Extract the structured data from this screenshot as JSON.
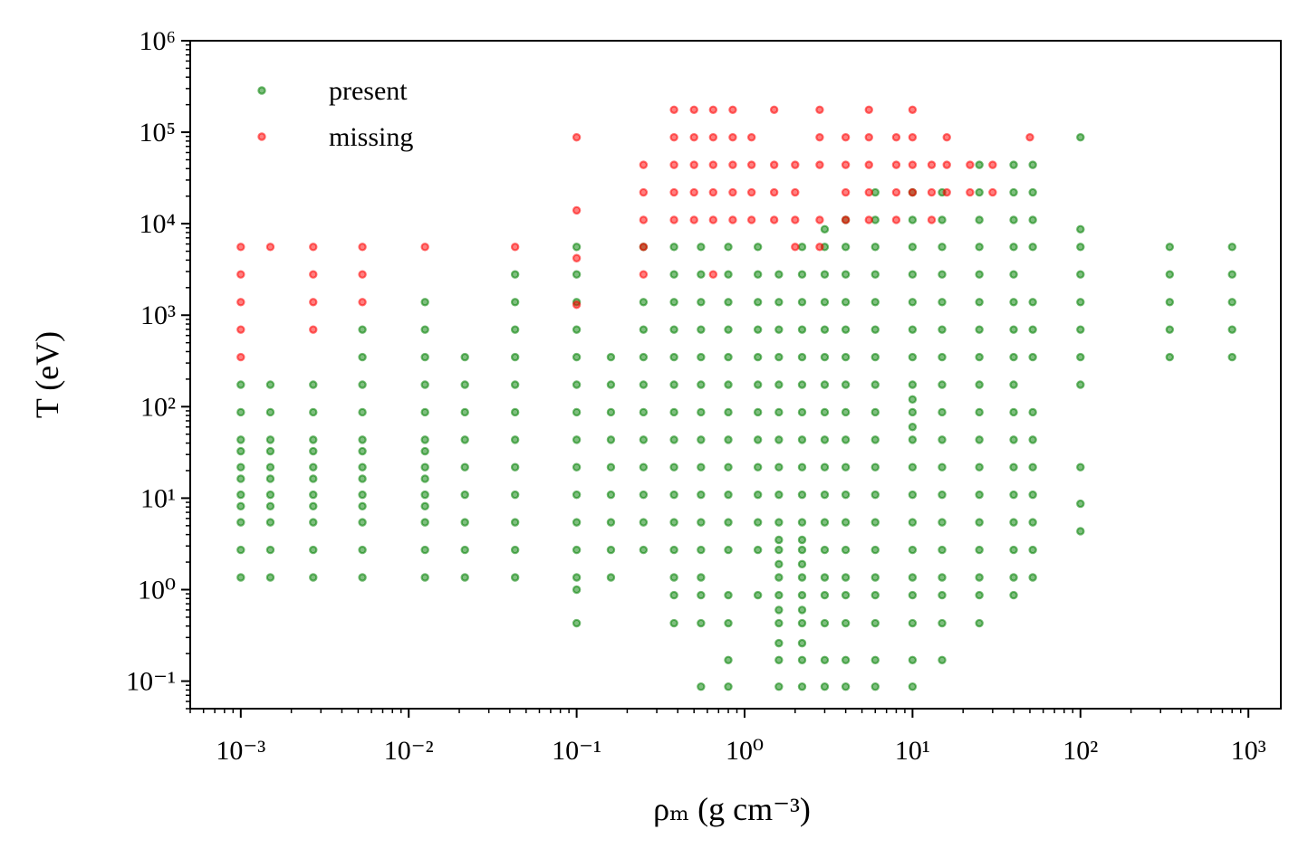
{
  "chart_data": {
    "type": "scatter",
    "xlabel": "ρₘ (g cm⁻³)",
    "ylabel": "T (eV)",
    "xscale": "log",
    "yscale": "log",
    "xlim": [
      0.0005,
      1560
    ],
    "ylim": [
      0.05,
      1000000
    ],
    "xticks": [
      {
        "value": 0.001,
        "label": "10⁻³"
      },
      {
        "value": 0.01,
        "label": "10⁻²"
      },
      {
        "value": 0.1,
        "label": "10⁻¹"
      },
      {
        "value": 1,
        "label": "10⁰"
      },
      {
        "value": 10,
        "label": "10¹"
      },
      {
        "value": 100,
        "label": "10²"
      },
      {
        "value": 1000,
        "label": "10³"
      }
    ],
    "yticks": [
      {
        "value": 0.1,
        "label": "10⁻¹"
      },
      {
        "value": 1,
        "label": "10⁰"
      },
      {
        "value": 10,
        "label": "10¹"
      },
      {
        "value": 100,
        "label": "10²"
      },
      {
        "value": 1000,
        "label": "10³"
      },
      {
        "value": 10000,
        "label": "10⁴"
      },
      {
        "value": 100000,
        "label": "10⁵"
      },
      {
        "value": 1000000,
        "label": "10⁶"
      }
    ],
    "legend": "upper left",
    "grid": false,
    "series": [
      {
        "name": "present",
        "color": "#008000",
        "x": [
          0.001,
          0.001,
          0.001,
          0.001,
          0.001,
          0.001,
          0.001,
          0.001,
          0.001,
          0.001,
          0.001,
          0.0015,
          0.0015,
          0.0015,
          0.0015,
          0.0015,
          0.0015,
          0.0015,
          0.0015,
          0.0015,
          0.0015,
          0.0015,
          0.0027,
          0.0027,
          0.0027,
          0.0027,
          0.0027,
          0.0027,
          0.0027,
          0.0027,
          0.0027,
          0.0027,
          0.0027,
          0.0053,
          0.0053,
          0.0053,
          0.0053,
          0.0053,
          0.0053,
          0.0053,
          0.0053,
          0.0053,
          0.0053,
          0.0053,
          0.0053,
          0.0053,
          0.0125,
          0.0125,
          0.0125,
          0.0125,
          0.0125,
          0.0125,
          0.0125,
          0.0125,
          0.0125,
          0.0125,
          0.0125,
          0.0125,
          0.0125,
          0.0125,
          0.0216,
          0.0216,
          0.0216,
          0.0216,
          0.0216,
          0.0216,
          0.0216,
          0.0216,
          0.0216,
          0.043,
          0.043,
          0.043,
          0.043,
          0.043,
          0.043,
          0.043,
          0.043,
          0.043,
          0.043,
          0.043,
          0.043,
          0.1,
          0.1,
          0.1,
          0.1,
          0.1,
          0.1,
          0.1,
          0.1,
          0.1,
          0.1,
          0.1,
          0.1,
          0.1,
          0.1,
          0.1,
          0.16,
          0.16,
          0.16,
          0.16,
          0.16,
          0.16,
          0.16,
          0.16,
          0.16,
          0.25,
          0.25,
          0.25,
          0.25,
          0.25,
          0.25,
          0.25,
          0.25,
          0.25,
          0.25,
          0.25,
          0.38,
          0.38,
          0.38,
          0.38,
          0.38,
          0.38,
          0.38,
          0.38,
          0.38,
          0.38,
          0.38,
          0.38,
          0.38,
          0.38,
          0.38,
          0.55,
          0.55,
          0.55,
          0.55,
          0.55,
          0.55,
          0.55,
          0.55,
          0.55,
          0.55,
          0.55,
          0.55,
          0.55,
          0.55,
          0.55,
          0.55,
          0.8,
          0.8,
          0.8,
          0.8,
          0.8,
          0.8,
          0.8,
          0.8,
          0.8,
          0.8,
          0.8,
          0.8,
          0.8,
          0.8,
          0.8,
          0.8,
          1.2,
          1.2,
          1.2,
          1.2,
          1.2,
          1.2,
          1.2,
          1.2,
          1.2,
          1.2,
          1.2,
          1.2,
          1.2,
          1.6,
          1.6,
          1.6,
          1.6,
          1.6,
          1.6,
          1.6,
          1.6,
          1.6,
          1.6,
          1.6,
          1.6,
          1.6,
          1.6,
          1.6,
          1.6,
          1.6,
          1.6,
          1.6,
          1.6,
          2.2,
          2.2,
          2.2,
          2.2,
          2.2,
          2.2,
          2.2,
          2.2,
          2.2,
          2.2,
          2.2,
          2.2,
          2.2,
          2.2,
          2.2,
          2.2,
          2.2,
          2.2,
          2.2,
          2.2,
          2.2,
          3,
          3,
          3,
          3,
          3,
          3,
          3,
          3,
          3,
          3,
          3,
          3,
          3,
          3,
          3,
          3,
          3,
          3,
          4,
          4,
          4,
          4,
          4,
          4,
          4,
          4,
          4,
          4,
          4,
          4,
          4,
          4,
          4,
          4,
          4,
          4,
          6,
          6,
          6,
          6,
          6,
          6,
          6,
          6,
          6,
          6,
          6,
          6,
          6,
          6,
          6,
          6,
          6,
          6,
          6,
          10,
          10,
          10,
          10,
          10,
          10,
          10,
          10,
          10,
          10,
          10,
          10,
          10,
          10,
          10,
          10,
          10,
          10,
          10,
          10,
          10,
          15,
          15,
          15,
          15,
          15,
          15,
          15,
          15,
          15,
          15,
          15,
          15,
          15,
          15,
          15,
          15,
          15,
          15,
          25,
          25,
          25,
          25,
          25,
          25,
          25,
          25,
          25,
          25,
          25,
          25,
          25,
          25,
          25,
          25,
          25,
          25,
          40,
          40,
          40,
          40,
          40,
          40,
          40,
          40,
          40,
          40,
          40,
          40,
          40,
          40,
          40,
          40,
          40,
          52,
          52,
          52,
          52,
          52,
          52,
          52,
          52,
          52,
          52,
          52,
          52,
          52,
          52,
          100,
          100,
          100,
          100,
          100,
          100,
          100,
          100,
          100,
          100,
          100,
          340,
          340,
          340,
          340,
          340,
          800,
          800,
          800,
          800,
          800
        ],
        "values": [
          1.36,
          2.72,
          5.44,
          8.16,
          10.9,
          16.3,
          21.8,
          32.6,
          43.5,
          87,
          174,
          1.36,
          2.72,
          5.44,
          8.16,
          10.9,
          16.3,
          21.8,
          32.6,
          43.5,
          87,
          174,
          1.36,
          2.72,
          5.44,
          8.16,
          10.9,
          16.3,
          21.8,
          32.6,
          43.5,
          87,
          174,
          1.36,
          2.72,
          5.44,
          8.16,
          10.9,
          16.3,
          21.8,
          32.6,
          43.5,
          87,
          174,
          348,
          696,
          1.36,
          2.72,
          5.44,
          8.16,
          10.9,
          16.3,
          21.8,
          32.6,
          43.5,
          87,
          174,
          348,
          696,
          1390,
          1.36,
          2.72,
          5.44,
          10.9,
          21.8,
          43.5,
          87,
          174,
          348,
          1.36,
          2.72,
          5.44,
          10.9,
          21.8,
          43.5,
          87,
          174,
          348,
          696,
          1390,
          2790,
          0.43,
          1.0,
          1.36,
          2.72,
          5.44,
          10.9,
          21.8,
          43.5,
          87,
          174,
          348,
          696,
          1390,
          2790,
          5570,
          1.36,
          2.72,
          5.44,
          10.9,
          21.8,
          43.5,
          87,
          174,
          348,
          2.72,
          5.44,
          10.9,
          21.8,
          43.5,
          87,
          174,
          348,
          696,
          1390,
          5570,
          0.43,
          0.87,
          1.36,
          2.72,
          5.44,
          10.9,
          21.8,
          43.5,
          87,
          174,
          348,
          696,
          1390,
          2790,
          5570,
          0.087,
          0.43,
          0.87,
          1.36,
          2.72,
          5.44,
          10.9,
          21.8,
          43.5,
          87,
          174,
          348,
          696,
          1390,
          2790,
          5570,
          0.087,
          0.17,
          0.43,
          0.87,
          2.72,
          5.44,
          10.9,
          21.8,
          43.5,
          87,
          174,
          348,
          696,
          1390,
          2790,
          5570,
          0.87,
          2.72,
          5.44,
          10.9,
          21.8,
          43.5,
          87,
          174,
          348,
          696,
          1390,
          2790,
          5570,
          0.087,
          0.17,
          0.26,
          0.43,
          0.6,
          0.87,
          1.36,
          1.9,
          2.72,
          3.5,
          5.44,
          10.9,
          21.8,
          43.5,
          87,
          174,
          348,
          696,
          1390,
          2790,
          0.087,
          0.17,
          0.26,
          0.43,
          0.6,
          0.87,
          1.36,
          1.9,
          2.72,
          3.5,
          5.44,
          10.9,
          21.8,
          43.5,
          87,
          174,
          348,
          696,
          1390,
          2790,
          5570,
          0.087,
          0.17,
          0.43,
          0.87,
          1.36,
          2.72,
          5.44,
          10.9,
          21.8,
          43.5,
          87,
          174,
          348,
          696,
          1390,
          2790,
          5570,
          8700,
          0.087,
          0.17,
          0.43,
          0.87,
          1.36,
          2.72,
          5.44,
          10.9,
          21.8,
          43.5,
          87,
          174,
          348,
          696,
          1390,
          2790,
          5570,
          11000,
          0.087,
          0.17,
          0.43,
          0.87,
          1.36,
          2.72,
          5.44,
          10.9,
          21.8,
          43.5,
          87,
          174,
          348,
          696,
          1390,
          2790,
          5570,
          11000,
          22000,
          0.087,
          0.17,
          0.43,
          0.87,
          1.36,
          2.72,
          5.44,
          10.9,
          21.8,
          43.5,
          60,
          87,
          120,
          174,
          348,
          696,
          1390,
          2790,
          5570,
          11000,
          22000,
          0.17,
          0.43,
          0.87,
          1.36,
          2.72,
          5.44,
          10.9,
          21.8,
          43.5,
          87,
          174,
          348,
          696,
          1390,
          2790,
          5570,
          11000,
          22000,
          0.43,
          0.87,
          1.36,
          2.72,
          5.44,
          10.9,
          21.8,
          43.5,
          87,
          174,
          348,
          696,
          1390,
          2790,
          5570,
          11000,
          22000,
          44000,
          0.87,
          1.36,
          2.72,
          5.44,
          10.9,
          21.8,
          43.5,
          87,
          174,
          348,
          696,
          1390,
          2790,
          5570,
          11000,
          22000,
          44000,
          1.36,
          2.72,
          5.44,
          10.9,
          21.8,
          43.5,
          87,
          348,
          696,
          1390,
          5570,
          11000,
          22000,
          44000,
          4.35,
          8.7,
          21.8,
          174,
          348,
          696,
          1390,
          2790,
          5570,
          8700,
          88000,
          348,
          696,
          1390,
          2790,
          5570,
          348,
          696,
          1390,
          2790,
          5570
        ]
      },
      {
        "name": "missing",
        "color": "#ff0000",
        "x": [
          0.001,
          0.001,
          0.001,
          0.001,
          0.001,
          0.0015,
          0.0027,
          0.0027,
          0.0027,
          0.0027,
          0.0053,
          0.0053,
          0.0053,
          0.0125,
          0.043,
          0.1,
          0.1,
          0.1,
          0.1,
          0.25,
          0.25,
          0.25,
          0.25,
          0.25,
          0.38,
          0.38,
          0.38,
          0.38,
          0.38,
          0.5,
          0.5,
          0.5,
          0.5,
          0.5,
          0.65,
          0.65,
          0.65,
          0.65,
          0.65,
          0.65,
          0.85,
          0.85,
          0.85,
          0.85,
          0.85,
          1.1,
          1.1,
          1.1,
          1.1,
          1.5,
          1.5,
          1.5,
          1.5,
          2,
          2,
          2,
          2,
          2.8,
          2.8,
          2.8,
          2.8,
          2.8,
          4,
          4,
          4,
          4,
          5.5,
          5.5,
          5.5,
          5.5,
          5.5,
          8,
          8,
          8,
          8,
          10,
          10,
          10,
          10,
          13,
          13,
          13,
          16,
          16,
          16,
          22,
          22,
          30,
          30,
          50
        ],
        "values": [
          348,
          696,
          1390,
          2790,
          5570,
          5570,
          696,
          1390,
          2790,
          5570,
          1390,
          2790,
          5570,
          5570,
          5570,
          1300,
          4200,
          14000,
          88000,
          2790,
          5570,
          11000,
          22000,
          44000,
          11000,
          22000,
          44000,
          88000,
          176000,
          11000,
          22000,
          44000,
          88000,
          176000,
          2790,
          11000,
          22000,
          44000,
          88000,
          176000,
          11000,
          22000,
          44000,
          88000,
          176000,
          11000,
          22000,
          44000,
          88000,
          11000,
          22000,
          44000,
          176000,
          5570,
          11000,
          22000,
          44000,
          5570,
          11000,
          44000,
          88000,
          176000,
          11000,
          22000,
          44000,
          88000,
          11000,
          22000,
          44000,
          88000,
          176000,
          11000,
          22000,
          44000,
          88000,
          22000,
          44000,
          88000,
          176000,
          11000,
          22000,
          44000,
          22000,
          44000,
          88000,
          22000,
          44000,
          22000,
          44000,
          88000
        ]
      }
    ]
  }
}
